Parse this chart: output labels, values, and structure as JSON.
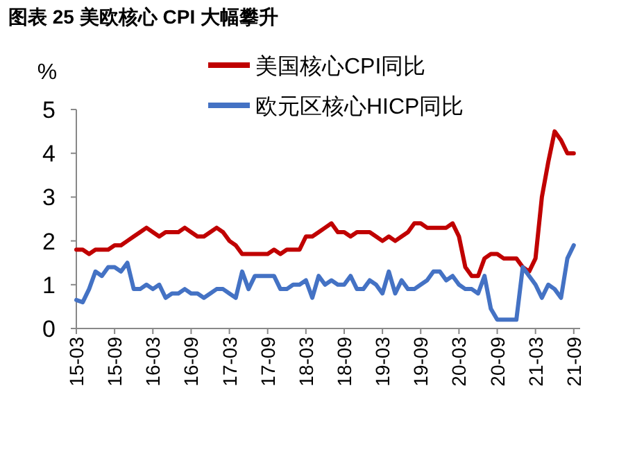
{
  "chart_data": {
    "type": "line",
    "title": "图表 25  美欧核心 CPI 大幅攀升",
    "ylabel": "%",
    "categories": [
      "15-03",
      null,
      null,
      null,
      null,
      null,
      "15-09",
      null,
      null,
      null,
      null,
      null,
      "16-03",
      null,
      null,
      null,
      null,
      null,
      "16-09",
      null,
      null,
      null,
      null,
      null,
      "17-03",
      null,
      null,
      null,
      null,
      null,
      "17-09",
      null,
      null,
      null,
      null,
      null,
      "18-03",
      null,
      null,
      null,
      null,
      null,
      "18-09",
      null,
      null,
      null,
      null,
      null,
      "19-03",
      null,
      null,
      null,
      null,
      null,
      "19-09",
      null,
      null,
      null,
      null,
      null,
      "20-03",
      null,
      null,
      null,
      null,
      null,
      "20-09",
      null,
      null,
      null,
      null,
      null,
      "21-03",
      null,
      null,
      null,
      null,
      null,
      "21-09"
    ],
    "series": [
      {
        "name": "美国核心CPI同比",
        "color": "#c00000",
        "values": [
          1.8,
          1.8,
          1.7,
          1.8,
          1.8,
          1.8,
          1.9,
          1.9,
          2.0,
          2.1,
          2.2,
          2.3,
          2.2,
          2.1,
          2.2,
          2.2,
          2.2,
          2.3,
          2.2,
          2.1,
          2.1,
          2.2,
          2.3,
          2.2,
          2.0,
          1.9,
          1.7,
          1.7,
          1.7,
          1.7,
          1.7,
          1.8,
          1.7,
          1.8,
          1.8,
          1.8,
          2.1,
          2.1,
          2.2,
          2.3,
          2.4,
          2.2,
          2.2,
          2.1,
          2.2,
          2.2,
          2.2,
          2.1,
          2.0,
          2.1,
          2.0,
          2.1,
          2.2,
          2.4,
          2.4,
          2.3,
          2.3,
          2.3,
          2.3,
          2.4,
          2.1,
          1.4,
          1.2,
          1.2,
          1.6,
          1.7,
          1.7,
          1.6,
          1.6,
          1.6,
          1.4,
          1.3,
          1.6,
          3.0,
          3.8,
          4.5,
          4.3,
          4.0,
          4.0
        ]
      },
      {
        "name": "欧元区核心HICP同比",
        "color": "#4472c4",
        "values": [
          0.65,
          0.6,
          0.9,
          1.3,
          1.2,
          1.4,
          1.4,
          1.3,
          1.5,
          0.9,
          0.9,
          1.0,
          0.9,
          1.0,
          0.7,
          0.8,
          0.8,
          0.9,
          0.8,
          0.8,
          0.7,
          0.8,
          0.9,
          0.9,
          0.8,
          0.7,
          1.3,
          0.9,
          1.2,
          1.2,
          1.2,
          1.2,
          0.9,
          0.9,
          1.0,
          1.0,
          1.1,
          0.7,
          1.2,
          1.0,
          1.1,
          1.0,
          1.0,
          1.2,
          0.9,
          0.9,
          1.1,
          1.0,
          0.8,
          1.3,
          0.8,
          1.1,
          0.9,
          0.9,
          1.0,
          1.1,
          1.3,
          1.3,
          1.1,
          1.2,
          1.0,
          0.9,
          0.9,
          0.8,
          1.2,
          0.45,
          0.2,
          0.2,
          0.2,
          0.2,
          1.4,
          1.2,
          1.0,
          0.7,
          1.0,
          0.9,
          0.7,
          1.6,
          1.9
        ]
      }
    ],
    "ylim": [
      0,
      5
    ],
    "yticks": [
      0,
      1,
      2,
      3,
      4,
      5
    ],
    "legend": "top right",
    "marker": "none",
    "line_style": "solid"
  }
}
